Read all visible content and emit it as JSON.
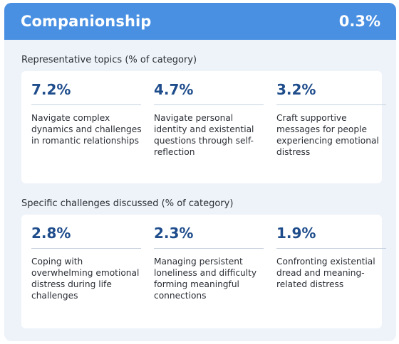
{
  "header": {
    "title": "Companionship",
    "value": "0.3%"
  },
  "sections": [
    {
      "title": "Representative topics (% of category)",
      "items": [
        {
          "pct": "7.2%",
          "desc": "Navigate complex dynamics and challenges in romantic relationships"
        },
        {
          "pct": "4.7%",
          "desc": "Navigate personal identity and existential questions through self-reflection"
        },
        {
          "pct": "3.2%",
          "desc": "Craft supportive messages for people experiencing emotional distress"
        }
      ]
    },
    {
      "title": "Specific challenges discussed (% of category)",
      "items": [
        {
          "pct": "2.8%",
          "desc": "Coping with overwhelming emotional distress during life challenges"
        },
        {
          "pct": "2.3%",
          "desc": "Managing persistent loneliness and difficulty forming meaningful connections"
        },
        {
          "pct": "1.9%",
          "desc": "Confronting existential dread and meaning-related distress"
        }
      ]
    }
  ]
}
